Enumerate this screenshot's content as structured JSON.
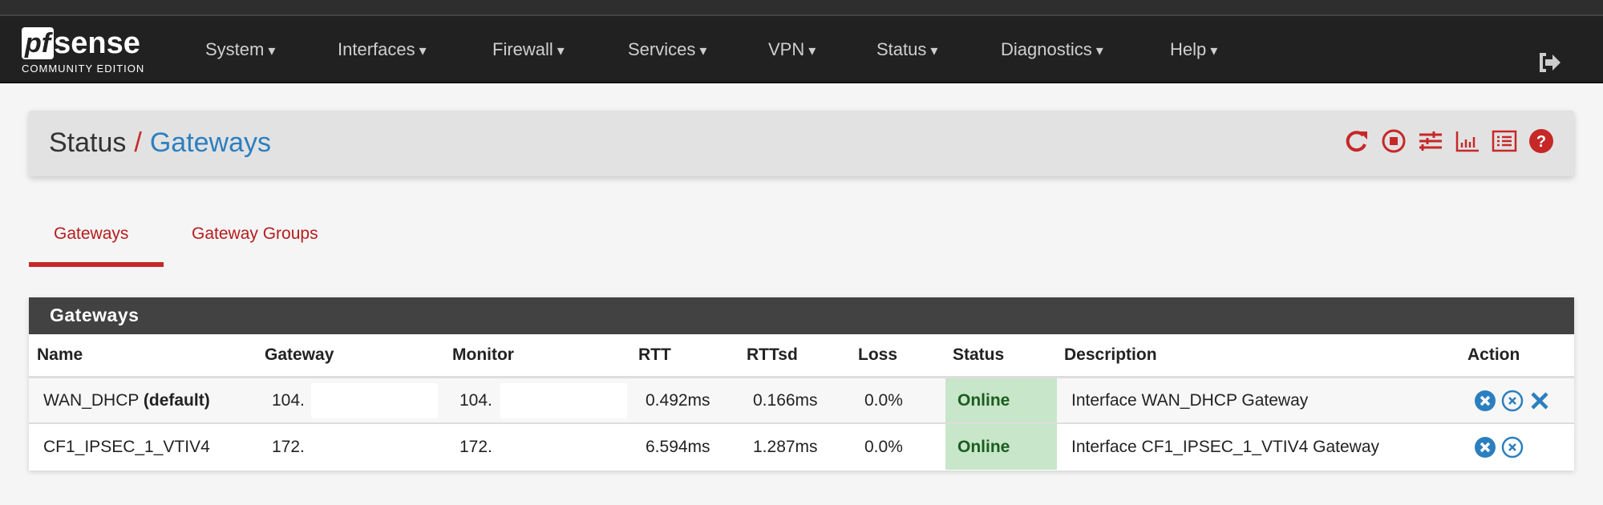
{
  "nav": {
    "logo_main": "pfsense",
    "logo_pf": "pf",
    "logo_sense": "sense",
    "logo_sub": "COMMUNITY EDITION",
    "items": [
      "System",
      "Interfaces",
      "Firewall",
      "Services",
      "VPN",
      "Status",
      "Diagnostics",
      "Help"
    ],
    "logout_icon": "sign-out-icon"
  },
  "breadcrumb": {
    "parent": "Status",
    "separator": "/",
    "current": "Gateways",
    "icons": [
      "refresh-icon",
      "stop-circle-icon",
      "sliders-icon",
      "bar-chart-icon",
      "list-alt-icon",
      "question-circle-icon"
    ]
  },
  "tabs": [
    {
      "label": "Gateways",
      "active": true
    },
    {
      "label": "Gateway Groups",
      "active": false
    }
  ],
  "panel": {
    "title": "Gateways",
    "columns": [
      "Name",
      "Gateway",
      "Monitor",
      "RTT",
      "RTTsd",
      "Loss",
      "Status",
      "Description",
      "Action"
    ],
    "rows": [
      {
        "name": "WAN_DHCP",
        "name_suffix": "(default)",
        "gateway": "104.",
        "monitor": "104.",
        "rtt": "0.492ms",
        "rttsd": "0.166ms",
        "loss": "0.0%",
        "status": "Online",
        "description": "Interface WAN_DHCP Gateway",
        "actions": [
          "times-circle-icon",
          "times-circle-outline-icon",
          "times-icon"
        ]
      },
      {
        "name": "CF1_IPSEC_1_VTIV4",
        "name_suffix": "",
        "gateway": "172.",
        "monitor": "172.",
        "rtt": "6.594ms",
        "rttsd": "1.287ms",
        "loss": "0.0%",
        "status": "Online",
        "description": "Interface CF1_IPSEC_1_VTIV4 Gateway",
        "actions": [
          "times-circle-icon",
          "times-circle-outline-icon"
        ]
      }
    ]
  },
  "colors": {
    "accent": "#c62828",
    "link": "#2c7fbf",
    "online_bg": "#c8e6c9",
    "online_text": "#1b5e20",
    "navbar": "#212121"
  }
}
